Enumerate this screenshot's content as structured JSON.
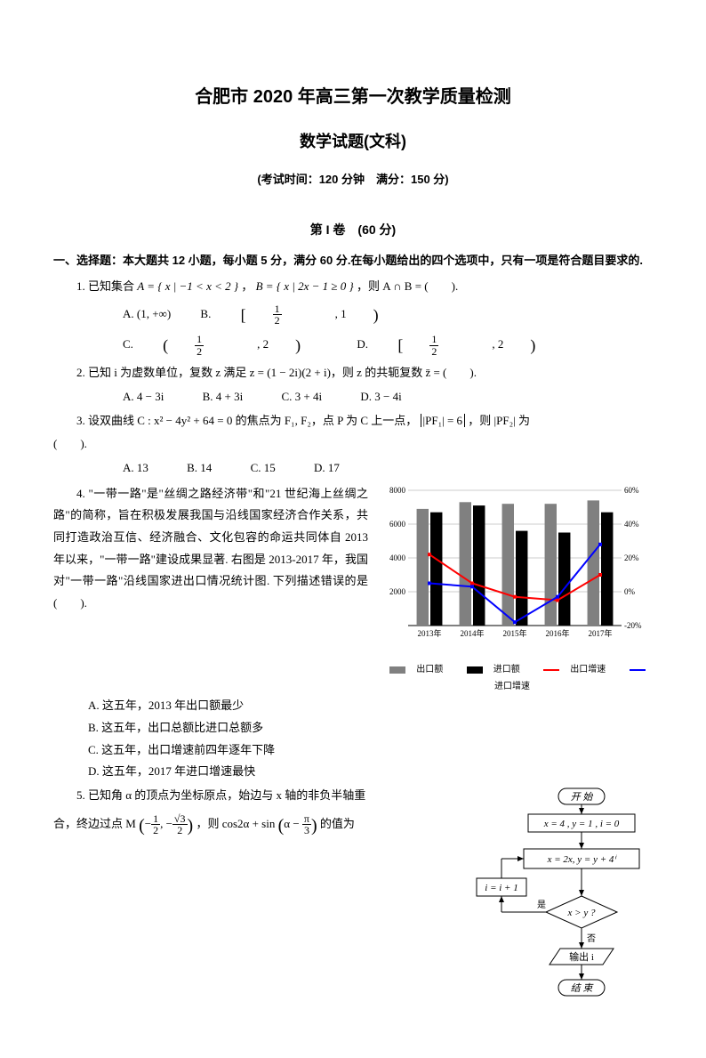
{
  "header": {
    "title": "合肥市 2020 年高三第一次教学质量检测",
    "subtitle": "数学试题(文科)",
    "examinfo": "(考试时间：120 分钟　满分：150 分)",
    "section": "第 I 卷　(60 分)"
  },
  "instructions": "一、选择题：本大题共 12 小题，每小题 5 分，满分 60 分.在每小题给出的四个选项中，只有一项是符合题目要求的.",
  "q1": {
    "stem_pre": "1. 已知集合 ",
    "setA": "A = { x | −1 < x < 2 }",
    "mid": "，",
    "setB": "B = { x | 2x − 1 ≥ 0 }",
    "stem_post": "，则 A ∩ B = (　　).",
    "optA": "A. (1, +∞)",
    "optB_label": "B.",
    "optB_num": "1",
    "optB_den": "2",
    "optB_r": ", 1",
    "optC_label": "C.",
    "optC_num": "1",
    "optC_den": "2",
    "optC_r": ", 2",
    "optD_label": "D.",
    "optD_num": "1",
    "optD_den": "2",
    "optD_r": ", 2"
  },
  "q2": {
    "stem": "2. 已知 i 为虚数单位，复数 z 满足 z = (1 − 2i)(2 + i)，则 z 的共轭复数 z̄ = (　　).",
    "optA": "A. 4 − 3i",
    "optB": "B. 4 + 3i",
    "optC": "C. 3 + 4i",
    "optD": "D. 3 − 4i"
  },
  "q3": {
    "stem_a": "3. 设双曲线 C : x² − 4y² + 64 = 0 的焦点为 F₁, F₂，点 P 为 C 上一点，",
    "stem_b": "|PF₁| = 6",
    "stem_c": "，则 |PF₂| 为",
    "stem_d": "(　　).",
    "optA": "A. 13",
    "optB": "B. 14",
    "optC": "C. 15",
    "optD": "D. 17"
  },
  "q4": {
    "stem": "4. \"一带一路\"是\"丝绸之路经济带\"和\"21 世纪海上丝绸之路\"的简称，旨在积极发展我国与沿线国家经济合作关系，共同打造政治互信、经济融合、文化包容的命运共同体自 2013 年以来，\"一带一路\"建设成果显著. 右图是 2013-2017 年，我国对\"一带一路\"沿线国家进出口情况统计图. 下列描述错误的是 (　　).",
    "optA": "A. 这五年，2013 年出口额最少",
    "optB": "B. 这五年，出口总额比进口总额多",
    "optC": "C. 这五年，出口增速前四年逐年下降",
    "optD": "D. 这五年，2017 年进口增速最快"
  },
  "q5": {
    "stem_a": "5. 已知角 α 的顶点为坐标原点，始边与 x 轴的非负半轴重",
    "stem_b": "合，终边过点 M",
    "mx_num": "1",
    "mx_den": "2",
    "my_num": "√3",
    "my_den": "2",
    "stem_c": "，则 cos2α + sin",
    "arg_pre": "α −",
    "arg_num": "π",
    "arg_den": "3",
    "stem_d": "的值为"
  },
  "chart": {
    "type": "bar+line",
    "categories": [
      "2013年",
      "2014年",
      "2015年",
      "2016年",
      "2017年"
    ],
    "export_bars": [
      6900,
      7300,
      7200,
      7200,
      7400
    ],
    "import_bars": [
      6700,
      7100,
      5600,
      5500,
      6700
    ],
    "export_growth": [
      22,
      5,
      -3,
      -5,
      10
    ],
    "import_growth": [
      5,
      3,
      -18,
      -3,
      28
    ],
    "bar_color_export": "#808080",
    "bar_color_import": "#000000",
    "line_color_export": "#ff0000",
    "line_color_import": "#0000ff",
    "y_left_ticks": [
      2000,
      4000,
      6000,
      8000
    ],
    "y_right_ticks": [
      "-20%",
      "0%",
      "20%",
      "40%",
      "60%"
    ],
    "y_left_max": 8000,
    "y_right_min": -20,
    "y_right_max": 60,
    "background": "#ffffff",
    "grid_color": "#cccccc",
    "legend": {
      "export_bar": "出口额",
      "import_bar": "进口额",
      "export_line": "出口增速",
      "import_line": "进口增速"
    }
  },
  "flowchart": {
    "type": "flowchart",
    "nodes": [
      {
        "id": "start",
        "label": "开 始",
        "shape": "round"
      },
      {
        "id": "init",
        "label": "x = 4 , y = 1 , i = 0",
        "shape": "rect"
      },
      {
        "id": "calc",
        "label": "x = 2x,  y = y + 4ⁱ",
        "shape": "rect"
      },
      {
        "id": "inc",
        "label": "i = i + 1",
        "shape": "rect"
      },
      {
        "id": "cond",
        "label": "x > y ?",
        "shape": "diamond"
      },
      {
        "id": "out",
        "label": "输出 i",
        "shape": "parallelogram"
      },
      {
        "id": "end",
        "label": "结 束",
        "shape": "round"
      }
    ],
    "edges": [
      [
        "start",
        "init"
      ],
      [
        "init",
        "calc"
      ],
      [
        "calc",
        "cond"
      ],
      [
        "cond",
        "inc",
        "是"
      ],
      [
        "inc",
        "calc"
      ],
      [
        "cond",
        "out",
        "否"
      ],
      [
        "out",
        "end"
      ]
    ],
    "border_color": "#000000",
    "fill_color": "#ffffff",
    "font_size": 11
  }
}
